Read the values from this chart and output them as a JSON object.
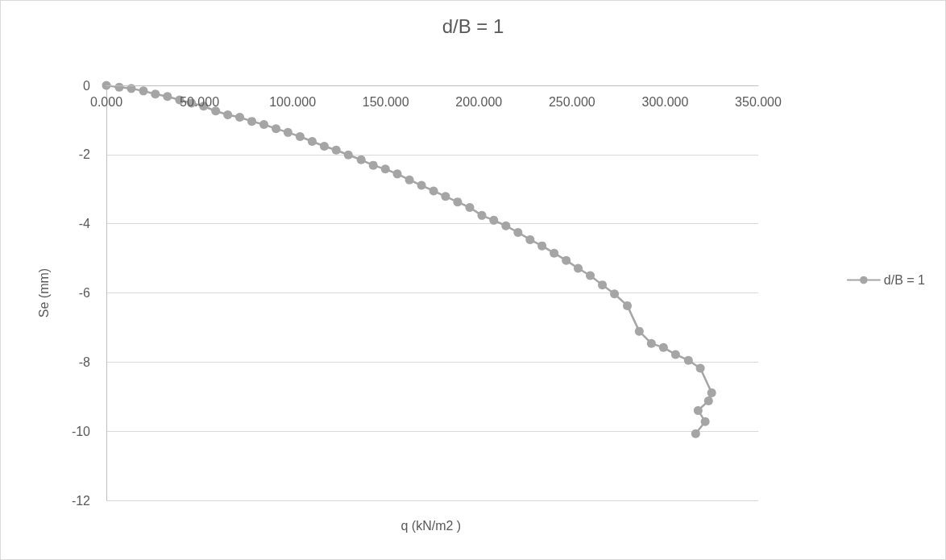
{
  "chart_data": {
    "type": "line",
    "title": "d/B = 1",
    "xlabel": "q (kN/m2 )",
    "ylabel": "Se (mm)",
    "series": [
      {
        "name": "d/B = 1",
        "color": "#a5a5a5",
        "x": [
          0,
          6.9,
          13.4,
          19.9,
          26.3,
          32.8,
          39.3,
          45.7,
          52.2,
          58.7,
          65.2,
          71.6,
          78.1,
          84.6,
          91.1,
          97.5,
          104.0,
          110.5,
          117.0,
          123.4,
          129.9,
          136.8,
          143.3,
          149.8,
          156.2,
          162.7,
          169.2,
          175.7,
          182.1,
          188.6,
          195.1,
          201.6,
          208.0,
          214.5,
          221.0,
          227.5,
          233.9,
          240.4,
          246.9,
          253.3,
          259.8,
          266.3,
          272.8,
          279.7,
          286.1,
          292.6,
          299.1,
          305.6,
          312.5,
          318.9,
          325.0,
          323.3,
          317.7,
          321.5,
          316.4
        ],
        "values": [
          0,
          -0.05,
          -0.09,
          -0.16,
          -0.25,
          -0.32,
          -0.42,
          -0.51,
          -0.6,
          -0.74,
          -0.85,
          -0.92,
          -1.04,
          -1.13,
          -1.25,
          -1.36,
          -1.48,
          -1.62,
          -1.76,
          -1.87,
          -2.01,
          -2.15,
          -2.31,
          -2.42,
          -2.56,
          -2.73,
          -2.89,
          -3.05,
          -3.21,
          -3.37,
          -3.53,
          -3.76,
          -3.9,
          -4.06,
          -4.25,
          -4.46,
          -4.64,
          -4.85,
          -5.06,
          -5.29,
          -5.5,
          -5.77,
          -6.03,
          -6.37,
          -7.11,
          -7.46,
          -7.58,
          -7.78,
          -7.95,
          -8.18,
          -8.89,
          -9.12,
          -9.4,
          -9.72,
          -10.07
        ]
      }
    ],
    "xlim": [
      0,
      350
    ],
    "xticks": [
      {
        "value": 0,
        "label": "0.000"
      },
      {
        "value": 50,
        "label": "50.000"
      },
      {
        "value": 100,
        "label": "100.000"
      },
      {
        "value": 150,
        "label": "150.000"
      },
      {
        "value": 200,
        "label": "200.000"
      },
      {
        "value": 250,
        "label": "250.000"
      },
      {
        "value": 300,
        "label": "300.000"
      },
      {
        "value": 350,
        "label": "350.000"
      }
    ],
    "ylim": [
      -12,
      0
    ],
    "yticks": [
      -12,
      -10,
      -8,
      -6,
      -4,
      -2,
      0
    ],
    "grid": "y",
    "legend": "right",
    "marker": "circle",
    "line_style": "solid"
  }
}
